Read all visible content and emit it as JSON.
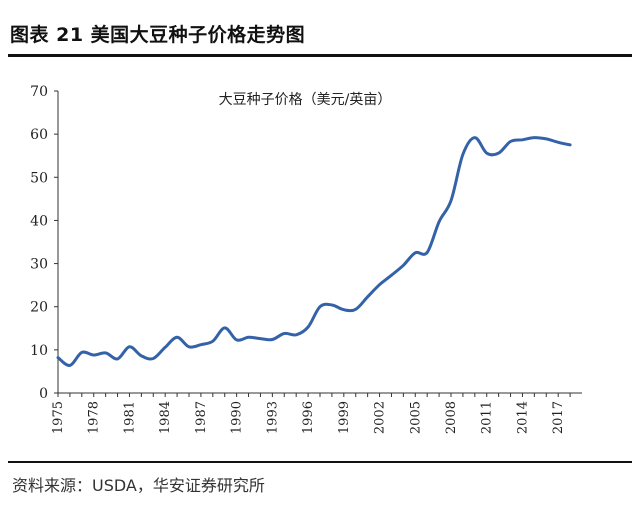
{
  "figure_title": "图表 21 美国大豆种子价格走势图",
  "source_note": "资料来源：USDA，华安证券研究所",
  "chart_data": {
    "type": "line",
    "title": "大豆种子价格（美元/英亩）",
    "xlabel": "",
    "ylabel": "",
    "xlim": [
      1975,
      2019
    ],
    "ylim": [
      0,
      70
    ],
    "y_ticks": [
      0,
      10,
      20,
      30,
      40,
      50,
      60,
      70
    ],
    "x_ticks": [
      "1975",
      "1978",
      "1981",
      "1984",
      "1987",
      "1990",
      "1993",
      "1996",
      "1999",
      "2002",
      "2005",
      "2008",
      "2011",
      "2014",
      "2017"
    ],
    "grid": false,
    "legend": "none",
    "line_color": "#3462a8",
    "series": [
      {
        "x": [
          1975,
          1976,
          1977,
          1978,
          1979,
          1980,
          1981,
          1982,
          1983,
          1984,
          1985,
          1986,
          1987,
          1988,
          1989,
          1990,
          1991,
          1992,
          1993,
          1994,
          1995,
          1996,
          1997,
          1998,
          1999,
          2000,
          2001,
          2002,
          2003,
          2004,
          2005,
          2006,
          2007,
          2008,
          2009,
          2010,
          2011,
          2012,
          2013,
          2014,
          2015,
          2016,
          2017,
          2018
        ],
        "y": [
          8.2,
          6.4,
          9.4,
          8.8,
          9.3,
          7.9,
          10.7,
          8.6,
          8.0,
          10.6,
          12.9,
          10.7,
          11.2,
          12.0,
          15.1,
          12.3,
          12.9,
          12.6,
          12.4,
          13.8,
          13.5,
          15.3,
          20.0,
          20.4,
          19.3,
          19.4,
          22.3,
          25.1,
          27.3,
          29.6,
          32.5,
          32.6,
          39.7,
          44.6,
          55.3,
          59.2,
          55.6,
          55.6,
          58.3,
          58.7,
          59.2,
          58.9,
          58.1,
          57.5
        ]
      }
    ]
  }
}
